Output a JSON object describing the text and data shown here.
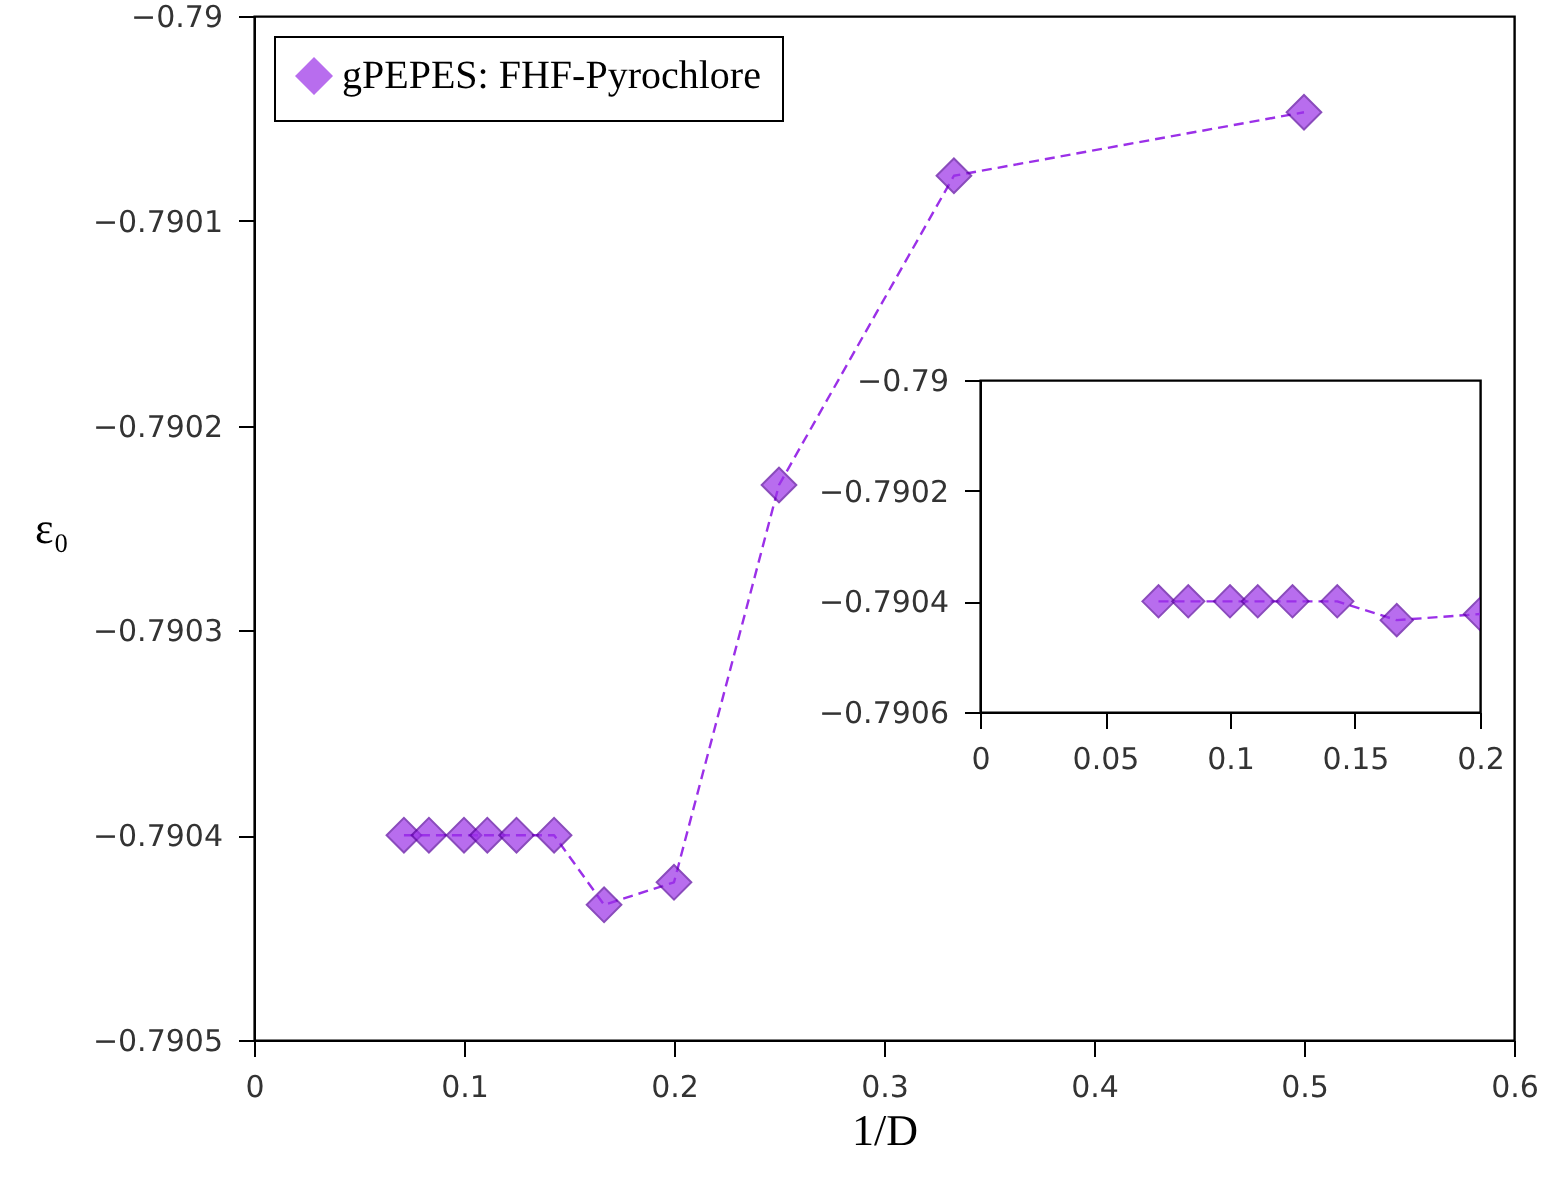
{
  "chart_data": [
    {
      "type": "line",
      "xlabel": "1/D",
      "ylabel": "ε₀",
      "x": [
        0.0714,
        0.0833,
        0.1,
        0.1111,
        0.125,
        0.1429,
        0.1667,
        0.2,
        0.25,
        0.3333,
        0.5
      ],
      "series": [
        {
          "name": "gPEPES: FHF-Pyrochlore",
          "color": "#9b30e8",
          "values": [
            -0.7904,
            -0.7904,
            -0.7904,
            -0.7904,
            -0.7904,
            -0.7904,
            -0.790434,
            -0.790423,
            -0.790229,
            -0.790078,
            -0.790047
          ]
        }
      ],
      "xlim": [
        0,
        0.6
      ],
      "xticks": [
        0,
        0.1,
        0.2,
        0.3,
        0.4,
        0.5,
        0.6
      ],
      "ylim": [
        -0.7905,
        -0.79
      ],
      "yticks": [
        -0.7905,
        -0.7904,
        -0.7903,
        -0.7902,
        -0.7901,
        -0.79
      ],
      "marker": "diamond",
      "line_style": "dashed",
      "legend": "top left",
      "grid": false
    },
    {
      "type": "line",
      "x": [
        0.0714,
        0.0833,
        0.1,
        0.1111,
        0.125,
        0.1429,
        0.1667,
        0.2
      ],
      "series": [
        {
          "color": "#9b30e8",
          "values": [
            -0.7904,
            -0.7904,
            -0.7904,
            -0.7904,
            -0.7904,
            -0.7904,
            -0.790434,
            -0.790423
          ]
        }
      ],
      "xlim": [
        0,
        0.2
      ],
      "xticks": [
        0,
        0.05,
        0.1,
        0.15,
        0.2
      ],
      "ylim": [
        -0.7906,
        -0.79
      ],
      "yticks": [
        -0.7906,
        -0.7904,
        -0.7902,
        -0.79
      ],
      "marker": "diamond",
      "line_style": "dashed",
      "grid": false
    }
  ]
}
